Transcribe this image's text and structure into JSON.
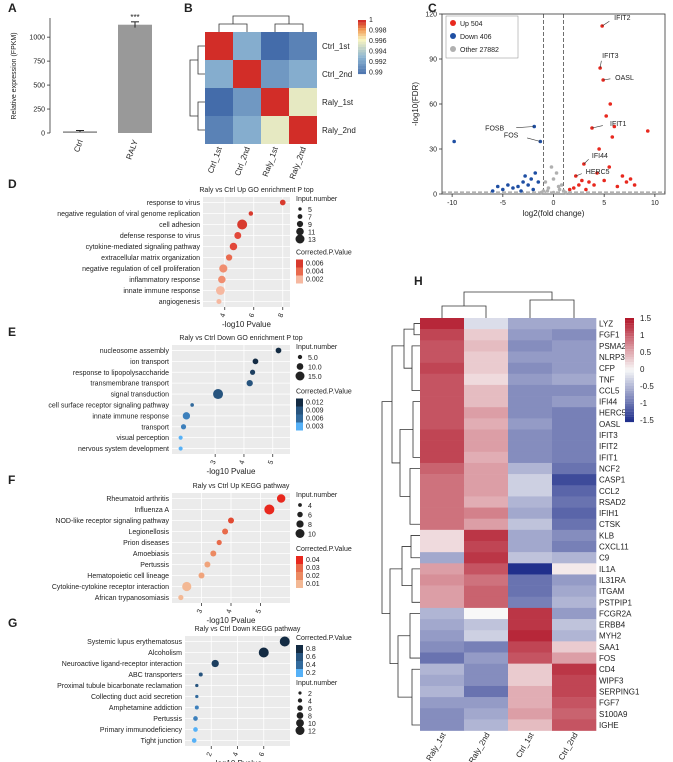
{
  "panel_labels": {
    "A": "A",
    "B": "B",
    "C": "C",
    "D": "D",
    "E": "E",
    "F": "F",
    "G": "G",
    "H": "H"
  },
  "chart_data": [
    {
      "id": "A",
      "type": "bar",
      "ylabel": "Relative expression (FPKM)",
      "categories": [
        "Ctrl",
        "RALY"
      ],
      "values": [
        18,
        1130
      ],
      "errors": [
        8,
        30
      ],
      "ylim": [
        0,
        1200
      ],
      "yticks": [
        0,
        250,
        500,
        750,
        1000
      ],
      "significance": "***"
    },
    {
      "id": "B",
      "type": "heatmap",
      "rows": [
        "Ctrl_1st",
        "Ctrl_2nd",
        "Raly_1st",
        "Raly_2nd"
      ],
      "cols": [
        "Ctrl_1st",
        "Ctrl_2nd",
        "Raly_1st",
        "Raly_2nd"
      ],
      "values": [
        [
          1,
          0.993,
          0.99,
          0.991
        ],
        [
          0.993,
          1,
          0.992,
          0.993
        ],
        [
          0.99,
          0.992,
          1,
          0.996
        ],
        [
          0.991,
          0.993,
          0.996,
          1
        ]
      ],
      "legend_ticks": [
        "1",
        "0.998",
        "0.996",
        "0.994",
        "0.992",
        "0.99"
      ]
    },
    {
      "id": "C",
      "type": "scatter",
      "xlabel": "log2(fold change)",
      "ylabel": "-log10(FDR)",
      "xlim": [
        -11,
        11
      ],
      "ylim": [
        0,
        120
      ],
      "xticks": [
        -10,
        -5,
        0,
        5,
        10
      ],
      "yticks": [
        0,
        30,
        60,
        90,
        120
      ],
      "legend": [
        {
          "name": "Up 504",
          "color": "#e8281e"
        },
        {
          "name": "Down 406",
          "color": "#1f4fa3"
        },
        {
          "name": "Other 27882",
          "color": "#b0b0b0"
        }
      ],
      "labeled_genes": [
        {
          "name": "IFIT2",
          "x": 4.8,
          "y": 112
        },
        {
          "name": "IFIT3",
          "x": 4.6,
          "y": 84
        },
        {
          "name": "OASL",
          "x": 4.9,
          "y": 76
        },
        {
          "name": "IFIT1",
          "x": 3.8,
          "y": 44
        },
        {
          "name": "FOSB",
          "x": -1.9,
          "y": 45
        },
        {
          "name": "FOS",
          "x": -1.3,
          "y": 35
        },
        {
          "name": "IFI44",
          "x": 3.0,
          "y": 20
        },
        {
          "name": "HERC5",
          "x": 2.2,
          "y": 12
        }
      ],
      "up": [
        [
          4.8,
          112
        ],
        [
          4.6,
          84
        ],
        [
          4.9,
          76
        ],
        [
          3.8,
          44
        ],
        [
          3,
          20
        ],
        [
          2.2,
          12
        ],
        [
          5.6,
          60
        ],
        [
          5.2,
          52
        ],
        [
          6,
          45
        ],
        [
          5.8,
          38
        ],
        [
          4.5,
          30
        ],
        [
          9.3,
          42
        ],
        [
          6.8,
          12
        ],
        [
          7.2,
          8
        ],
        [
          8.0,
          6
        ],
        [
          7.6,
          10
        ],
        [
          3.5,
          8
        ],
        [
          4,
          6
        ],
        [
          5,
          9
        ],
        [
          2,
          4
        ],
        [
          2.5,
          6
        ],
        [
          3.2,
          3
        ],
        [
          4.3,
          14
        ],
        [
          5.5,
          18
        ],
        [
          6.3,
          5
        ],
        [
          2.8,
          9
        ],
        [
          1.6,
          3
        ]
      ],
      "down": [
        [
          -9.8,
          35
        ],
        [
          -1.9,
          45
        ],
        [
          -1.3,
          35
        ],
        [
          -2.2,
          10
        ],
        [
          -3,
          8
        ],
        [
          -2.5,
          6
        ],
        [
          -4,
          4
        ],
        [
          -5,
          3
        ],
        [
          -3.5,
          5
        ],
        [
          -6,
          2
        ],
        [
          -2,
          3
        ],
        [
          -1.5,
          8
        ],
        [
          -4.5,
          6
        ],
        [
          -5.5,
          5
        ],
        [
          -3.2,
          2
        ],
        [
          -2.8,
          12
        ],
        [
          -1.8,
          14
        ]
      ],
      "other": [
        [
          -1,
          2
        ],
        [
          0,
          1
        ],
        [
          1,
          2
        ],
        [
          -0.5,
          4
        ],
        [
          0.5,
          5
        ],
        [
          -0.8,
          8
        ],
        [
          0.8,
          6
        ],
        [
          0,
          10
        ],
        [
          0.3,
          14
        ],
        [
          -0.2,
          18
        ],
        [
          0.6,
          3
        ],
        [
          -0.6,
          2
        ],
        [
          1.2,
          1
        ],
        [
          -1.2,
          1
        ]
      ]
    },
    {
      "id": "D",
      "type": "scatter",
      "title": "Raly vs Ctrl Up GO enrichment P top",
      "xlabel": "-log10 Pvalue",
      "xlim": [
        2.5,
        8.5
      ],
      "xticks": [
        4,
        6,
        8
      ],
      "terms": [
        "response to virus",
        "negative regulation of viral genome replication",
        "cell adhesion",
        "defense response to virus",
        "cytokine-mediated signaling pathway",
        "extracellular matrix organization",
        "negative regulation of cell proliferation",
        "inflammatory response",
        "innate immune response",
        "angiogenesis"
      ],
      "red_terms": [
        true,
        true,
        false,
        true,
        true,
        false,
        false,
        true,
        true,
        false
      ],
      "x": [
        8,
        5.8,
        5.2,
        4.9,
        4.6,
        4.3,
        3.9,
        3.8,
        3.7,
        3.6
      ],
      "size_legend_title": "Input.number",
      "size_legend": [
        "5",
        "7",
        "9",
        "11",
        "13"
      ],
      "sizes": [
        6,
        4,
        13,
        8,
        9,
        7,
        10,
        9,
        11,
        5
      ],
      "color_legend_title": "Corrected.P.Value",
      "color_legend": [
        "0.006",
        "0.004",
        "0.002"
      ]
    },
    {
      "id": "E",
      "type": "scatter",
      "title": "Raly vs Ctrl Down GO enrichment P top",
      "xlabel": "-log10 Pvalue",
      "xlim": [
        1.5,
        5.6
      ],
      "xticks": [
        3,
        4,
        5
      ],
      "terms": [
        "nucleosome assembly",
        "ion transport",
        "response to lipopolysaccharide",
        "transmembrane transport",
        "signal transduction",
        "cell surface receptor signaling pathway",
        "innate immune response",
        "transport",
        "visual perception",
        "nervous system development"
      ],
      "red_terms": [
        false,
        false,
        false,
        false,
        false,
        false,
        true,
        false,
        false,
        false
      ],
      "x": [
        5.2,
        4.4,
        4.3,
        4.2,
        3.1,
        2.2,
        2.0,
        1.9,
        1.8,
        1.8
      ],
      "size_legend_title": "Input.number",
      "size_legend": [
        "5.0",
        "10.0",
        "15.0"
      ],
      "sizes": [
        7,
        7,
        6,
        8,
        15,
        3,
        10,
        6,
        4,
        4
      ],
      "color_legend_title": "Corrected.P.Value",
      "color_legend": [
        "0.012",
        "0.009",
        "0.006",
        "0.003"
      ]
    },
    {
      "id": "F",
      "type": "scatter",
      "title": "Raly vs Ctrl Up KEGG pathway",
      "xlabel": "-log10 Pvalue",
      "xlim": [
        2,
        6
      ],
      "xticks": [
        3,
        4,
        5
      ],
      "terms": [
        "Rheumatoid arthritis",
        "Influenza A",
        "NOD-like receptor signaling pathway",
        "Legionellosis",
        "Prion diseases",
        "Amoebiasis",
        "Pertussis",
        "Hematopoietic cell lineage",
        "Cytokine-cytokine receptor interaction",
        "African trypanosomiasis"
      ],
      "x": [
        5.7,
        5.3,
        4.0,
        3.8,
        3.6,
        3.4,
        3.2,
        3.0,
        2.5,
        2.3
      ],
      "size_legend_title": "Input.number",
      "size_legend": [
        "4",
        "6",
        "8",
        "10"
      ],
      "sizes": [
        8,
        10,
        5,
        5,
        4,
        5,
        5,
        5,
        9,
        4
      ],
      "color_legend_title": "Corrected.P.Value",
      "color_legend": [
        "0.04",
        "0.03",
        "0.02",
        "0.01"
      ]
    },
    {
      "id": "G",
      "type": "scatter",
      "title": "Raly vs Ctrl Down KEGG pathway",
      "xlabel": "-log10 Pvalue",
      "xlim": [
        0,
        8
      ],
      "xticks": [
        2,
        4,
        6
      ],
      "terms": [
        "Systemic lupus erythematosus",
        "Alcoholism",
        "Neuroactive ligand-receptor interaction",
        "ABC transporters",
        "Proximal tubule bicarbonate reclamation",
        "Collecting duct acid secretion",
        "Amphetamine addiction",
        "Pertussis",
        "Primary immunodeficiency",
        "Tight junction"
      ],
      "x": [
        7.6,
        6.0,
        2.3,
        1.2,
        0.9,
        0.9,
        0.9,
        0.8,
        0.8,
        0.7
      ],
      "color_legend_title": "Corrected.P.Value",
      "color_legend": [
        "0.8",
        "0.6",
        "0.4",
        "0.2"
      ],
      "size_legend_title": "Input.number",
      "size_legend": [
        "2",
        "4",
        "6",
        "8",
        "10",
        "12"
      ],
      "sizes": [
        12,
        12,
        8,
        3,
        2,
        2,
        3,
        4,
        4,
        4
      ]
    },
    {
      "id": "H",
      "type": "heatmap",
      "cols": [
        "Raly_1st",
        "Raly_2nd",
        "Ctrl_1st",
        "Ctrl_2nd"
      ],
      "genes": [
        "LYZ",
        "FGF1",
        "PSMA2",
        "NLRP3",
        "CFP",
        "TNF",
        "CCL5",
        "IFI44",
        "HERC5",
        "OASL",
        "IFIT3",
        "IFIT2",
        "IFIT1",
        "NCF2",
        "CASP1",
        "CCL2",
        "RSAD2",
        "IFIH1",
        "CTSK",
        "KLB",
        "CXCL11",
        "C9",
        "IL1A",
        "IL31RA",
        "ITGAM",
        "PSTPIP1",
        "FCGR2A",
        "ERBB4",
        "MYH2",
        "SAA1",
        "FOS",
        "CD4",
        "WIPF3",
        "SERPING1",
        "FGF7",
        "S100A9",
        "IGHE"
      ],
      "red_genes": [
        "IFI44",
        "HERC5",
        "OASL",
        "IFIT3",
        "IFIT2",
        "IFIT1",
        "FOS"
      ],
      "values": [
        [
          1.4,
          -0.2,
          -0.6,
          -0.6
        ],
        [
          1.2,
          0.3,
          -0.7,
          -0.8
        ],
        [
          1.1,
          0.4,
          -0.8,
          -0.7
        ],
        [
          1.1,
          0.3,
          -0.7,
          -0.7
        ],
        [
          1.2,
          0.3,
          -0.8,
          -0.7
        ],
        [
          1.1,
          0.2,
          -0.7,
          -0.6
        ],
        [
          1.1,
          0.4,
          -0.8,
          -0.8
        ],
        [
          1.1,
          0.4,
          -0.8,
          -0.7
        ],
        [
          1.1,
          0.6,
          -0.8,
          -0.9
        ],
        [
          1.1,
          0.5,
          -0.7,
          -0.9
        ],
        [
          1.2,
          0.6,
          -0.8,
          -0.9
        ],
        [
          1.2,
          0.6,
          -0.8,
          -0.9
        ],
        [
          1.2,
          0.5,
          -0.8,
          -0.9
        ],
        [
          1.0,
          0.6,
          -0.5,
          -1.0
        ],
        [
          0.9,
          0.6,
          -0.3,
          -1.3
        ],
        [
          0.9,
          0.6,
          -0.3,
          -1.1
        ],
        [
          0.9,
          0.5,
          -0.5,
          -1.0
        ],
        [
          0.9,
          0.8,
          -0.6,
          -1.1
        ],
        [
          0.9,
          0.6,
          -0.4,
          -1.0
        ],
        [
          0.2,
          1.3,
          -0.6,
          -0.8
        ],
        [
          0.2,
          1.2,
          -0.6,
          -0.9
        ],
        [
          -0.6,
          1.3,
          -0.4,
          -0.5
        ],
        [
          0.6,
          1.1,
          -1.5,
          0.1
        ],
        [
          0.7,
          0.9,
          -1.0,
          -0.7
        ],
        [
          0.6,
          1.0,
          -1.0,
          -0.6
        ],
        [
          0.6,
          1.0,
          -0.9,
          -0.5
        ],
        [
          -0.5,
          0.0,
          1.3,
          -0.7
        ],
        [
          -0.6,
          -0.4,
          1.3,
          -0.4
        ],
        [
          -0.7,
          -0.3,
          1.4,
          -0.5
        ],
        [
          -0.8,
          -0.9,
          1.2,
          0.3
        ],
        [
          -1.0,
          -0.7,
          1.1,
          0.6
        ],
        [
          -0.5,
          -0.8,
          0.3,
          1.3
        ],
        [
          -0.6,
          -0.8,
          0.3,
          1.2
        ],
        [
          -0.5,
          -1.0,
          0.5,
          1.2
        ],
        [
          -0.7,
          -0.7,
          0.5,
          1.1
        ],
        [
          -0.8,
          -0.6,
          0.6,
          1.0
        ],
        [
          -0.8,
          -0.5,
          0.4,
          1.1
        ]
      ],
      "legend_ticks": [
        "1.5",
        "1",
        "0.5",
        "0",
        "-0.5",
        "-1",
        "-1.5"
      ]
    }
  ]
}
